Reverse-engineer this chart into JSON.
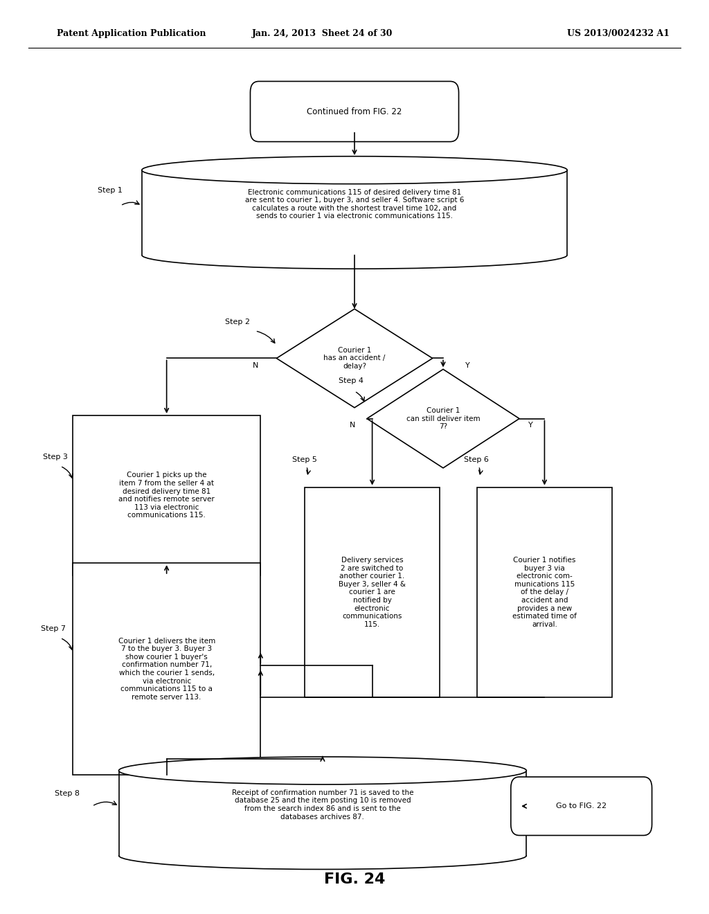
{
  "header_left": "Patent Application Publication",
  "header_mid": "Jan. 24, 2013  Sheet 24 of 30",
  "header_right": "US 2013/0024232 A1",
  "fig_label": "FIG. 24",
  "background_color": "#ffffff",
  "line_color": "#000000",
  "start_text": "Continued from FIG. 22",
  "step1_text": "Electronic communications 115 of desired delivery time 81\nare sent to courier 1, buyer 3, and seller 4. Software script 6\ncalculates a route with the shortest travel time 102, and\nsends to courier 1 via electronic communications 115.",
  "step2_text": "Courier 1\nhas an accident /\ndelay?",
  "step3_text": "Courier 1 picks up the\nitem 7 from the seller 4 at\ndesired delivery time 81\nand notifies remote server\n113 via electronic\ncommunications 115.",
  "step4_text": "Courier 1\ncan still deliver item\n7?",
  "step5_text": "Delivery services\n2 are switched to\nanother courier 1.\nBuyer 3, seller 4 &\ncourier 1 are\nnotified by\nelectronic\ncommunications\n115.",
  "step6_text": "Courier 1 notifies\nbuyer 3 via\nelectronic com-\nmunications 115\nof the delay /\naccident and\nprovides a new\nestimated time of\narrival.",
  "step7_text": "Courier 1 delivers the item\n7 to the buyer 3. Buyer 3\nshow courier 1 buyer's\nconfirmation number 71,\nwhich the courier 1 sends,\nvia electronic\ncommunications 115 to a\nremote server 113.",
  "step8_text": "Receipt of confirmation number 71 is saved to the\ndatabase 25 and the item posting 10 is removed\nfrom the search index 86 and is sent to the\ndatabases archives 87.",
  "goto_text": "Go to FIG. 22"
}
